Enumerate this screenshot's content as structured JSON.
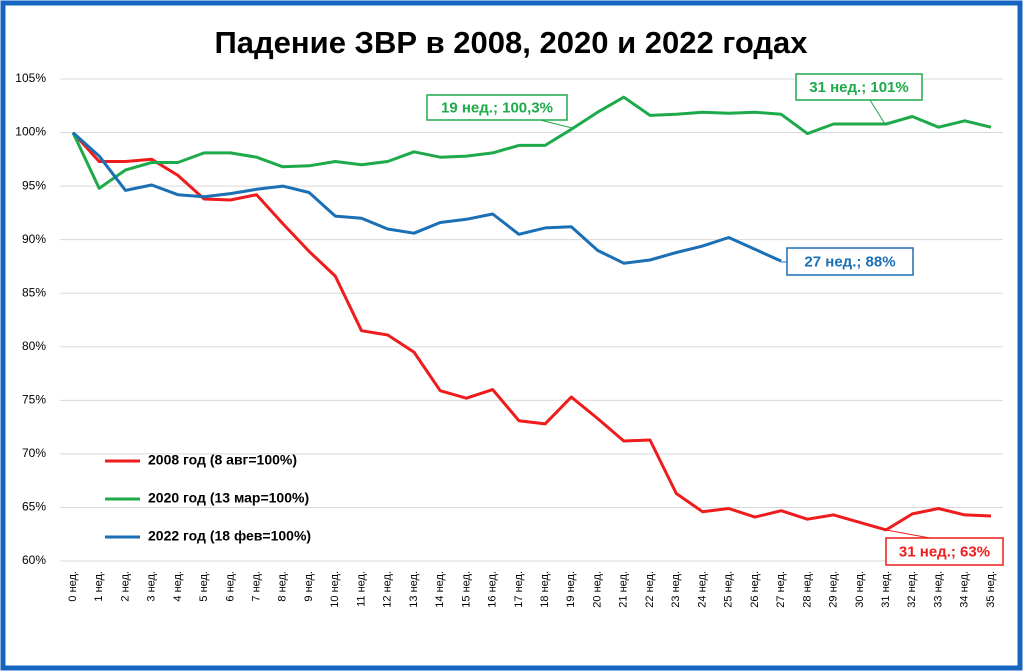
{
  "chart_data": {
    "type": "line",
    "title": "Падение ЗВР в 2008, 2020 и 2022 годах",
    "categories": [
      "0 нед.",
      "1 нед.",
      "2 нед.",
      "3 нед.",
      "4 нед.",
      "5 нед.",
      "6 нед.",
      "7 нед.",
      "8 нед.",
      "9 нед.",
      "10 нед.",
      "11 нед.",
      "12 нед.",
      "13 нед.",
      "14 нед.",
      "15 нед.",
      "16 нед.",
      "17 нед.",
      "18 нед.",
      "19 нед.",
      "20 нед.",
      "21 нед.",
      "22 нед.",
      "23 нед.",
      "24 нед.",
      "25 нед.",
      "26 нед.",
      "27 нед.",
      "28 нед.",
      "29 нед.",
      "30 нед.",
      "31 нед.",
      "32 нед.",
      "33 нед.",
      "34 нед.",
      "35 нед."
    ],
    "series": [
      {
        "name": "2008 год (8 авг=100%)",
        "color": "#ee1c1c",
        "values": [
          100,
          97.3,
          97.3,
          97.5,
          96,
          93.8,
          93.7,
          94.2,
          91.5,
          88.9,
          86.6,
          81.5,
          81.1,
          79.5,
          75.9,
          75.2,
          76,
          73.1,
          72.8,
          75.3,
          73.3,
          71.2,
          71.3,
          66.3,
          64.6,
          64.9,
          64.1,
          64.7,
          63.9,
          64.3,
          63.6,
          62.9,
          64.4,
          64.9,
          64.3,
          64.2
        ]
      },
      {
        "name": "2020 год (13 мар=100%)",
        "color": "#1eaa4a",
        "values": [
          100,
          94.8,
          96.5,
          97.2,
          97.2,
          98.1,
          98.1,
          97.7,
          96.8,
          96.9,
          97.3,
          97,
          97.3,
          98.2,
          97.7,
          97.8,
          98.1,
          98.8,
          98.8,
          100.3,
          101.9,
          103.3,
          101.6,
          101.7,
          101.9,
          101.8,
          101.9,
          101.7,
          99.9,
          100.8,
          100.8,
          100.8,
          101.5,
          100.5,
          101.1,
          100.5
        ]
      },
      {
        "name": "2022 год (18 фев=100%)",
        "color": "#1a6fb5",
        "values": [
          100,
          97.8,
          94.6,
          95.1,
          94.2,
          94,
          94.3,
          94.7,
          95,
          94.4,
          92.2,
          92,
          91,
          90.6,
          91.6,
          91.9,
          92.4,
          90.5,
          91.1,
          91.2,
          89,
          87.8,
          88.1,
          88.8,
          89.4,
          90.2,
          89.1,
          88,
          null,
          null,
          null,
          null,
          null,
          null,
          null,
          null
        ]
      }
    ],
    "ylim": [
      60,
      105
    ],
    "yticks": [
      {
        "value": 60,
        "label": "60%"
      },
      {
        "value": 65,
        "label": "65%"
      },
      {
        "value": 70,
        "label": "70%"
      },
      {
        "value": 75,
        "label": "75%"
      },
      {
        "value": 80,
        "label": "80%"
      },
      {
        "value": 85,
        "label": "85%"
      },
      {
        "value": 90,
        "label": "90%"
      },
      {
        "value": 95,
        "label": "95%"
      },
      {
        "value": 100,
        "label": "100%"
      },
      {
        "value": 105,
        "label": "105%"
      }
    ],
    "grid": true,
    "annotations": [
      "19 нед.; 100,3%",
      "31 нед.; 101%",
      "27 нед.; 88%",
      "31 нед.; 63%"
    ]
  }
}
